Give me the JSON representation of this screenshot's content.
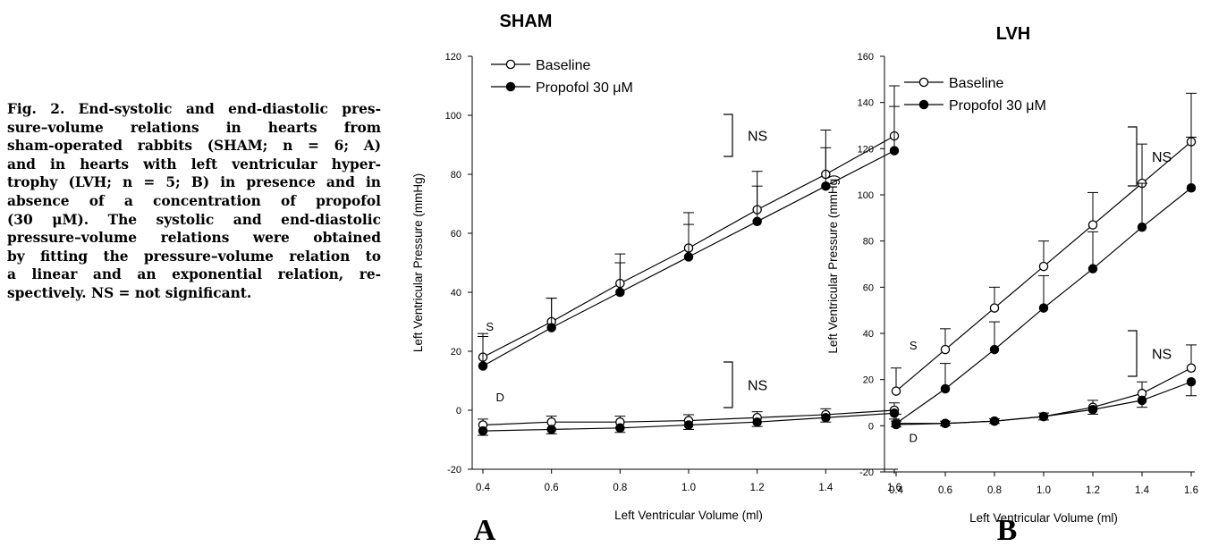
{
  "caption": {
    "lines": [
      "Fig. 2. End-systolic and end-diastolic pres-",
      "sure–volume relations in hearts from",
      "sham-operated rabbits (SHAM; n = 6; A)",
      "and in hearts with left ventricular hyper-",
      "trophy (LVH; n = 5; B) in presence and in",
      "absence of a concentration of propofol",
      "(30 μM). The systolic and end-diastolic",
      "pressure–volume relations were obtained",
      "by fitting the pressure–volume relation to",
      "a linear and an exponential relation, re-",
      "spectively. NS = not significant."
    ]
  },
  "chart_data": [
    {
      "type": "line",
      "panel_letter": "A",
      "title": "SHAM",
      "xlabel": "Left Ventricular Volume (ml)",
      "ylabel": "Left Ventricular Pressure (mmHg)",
      "xlim": [
        0.4,
        1.6
      ],
      "ylim": [
        -20,
        120
      ],
      "x_ticks": [
        "0.4",
        "0.6",
        "0.8",
        "1.0",
        "1.2",
        "1.4",
        "1.6"
      ],
      "y_ticks": [
        "-20",
        "0",
        "20",
        "40",
        "60",
        "80",
        "100",
        "120"
      ],
      "x": [
        0.4,
        0.6,
        0.8,
        1.0,
        1.2,
        1.4,
        1.6
      ],
      "legend_position": "top-left",
      "series": [
        {
          "name": "Baseline",
          "marker": "open-circle",
          "group": "S",
          "values": [
            18,
            30,
            43,
            55,
            68,
            80,
            93
          ],
          "error": [
            8,
            8,
            10,
            12,
            13,
            15,
            17
          ]
        },
        {
          "name": "Propofol 30 μM",
          "marker": "filled-circle",
          "group": "S",
          "values": [
            15,
            28,
            40,
            52,
            64,
            76,
            88
          ],
          "error": [
            10,
            10,
            10,
            11,
            12,
            13,
            15
          ]
        },
        {
          "name": "Baseline",
          "marker": "open-circle",
          "group": "D",
          "values": [
            -5,
            -4,
            -4,
            -3.5,
            -2.5,
            -1.5,
            0
          ],
          "error": [
            2,
            2,
            2,
            2,
            2,
            2,
            2.5
          ]
        },
        {
          "name": "Propofol 30 μM",
          "marker": "filled-circle",
          "group": "D",
          "values": [
            -7,
            -6.5,
            -6,
            -5,
            -4,
            -2.5,
            -1
          ],
          "error": [
            1.5,
            1.5,
            1.5,
            1.5,
            1.5,
            1.5,
            2
          ]
        }
      ],
      "annotations": [
        {
          "text": "S",
          "x": 0.42,
          "y": 27
        },
        {
          "text": "D",
          "x": 0.45,
          "y": 3
        },
        {
          "text": "NS",
          "group": "S"
        },
        {
          "text": "NS",
          "group": "D"
        }
      ]
    },
    {
      "type": "line",
      "panel_letter": "B",
      "title": "LVH",
      "xlabel": "Left Ventricular Volume (ml)",
      "ylabel": "Left Ventricular Pressure (mmHg)",
      "xlim": [
        0.4,
        1.6
      ],
      "ylim": [
        -20,
        160
      ],
      "x_ticks": [
        "0.4",
        "0.6",
        "0.8",
        "1.0",
        "1.2",
        "1.4",
        "1.6"
      ],
      "y_ticks": [
        "-20",
        "0",
        "20",
        "40",
        "60",
        "80",
        "100",
        "120",
        "140",
        "160"
      ],
      "x": [
        0.4,
        0.6,
        0.8,
        1.0,
        1.2,
        1.4,
        1.6
      ],
      "legend_position": "top-left",
      "series": [
        {
          "name": "Baseline",
          "marker": "open-circle",
          "group": "S",
          "values": [
            15,
            33,
            51,
            69,
            87,
            105,
            123
          ],
          "error": [
            10,
            9,
            9,
            11,
            14,
            17,
            21
          ]
        },
        {
          "name": "Propofol 30 μM",
          "marker": "filled-circle",
          "group": "S",
          "values": [
            1,
            16,
            33,
            51,
            68,
            86,
            103
          ],
          "error": [
            4,
            11,
            12,
            14,
            16,
            19,
            22
          ]
        },
        {
          "name": "Baseline",
          "marker": "open-circle",
          "group": "D",
          "values": [
            1,
            1,
            2,
            4,
            8,
            14,
            25
          ],
          "error": [
            1,
            1,
            1,
            1.5,
            3,
            5,
            10
          ]
        },
        {
          "name": "Propofol 30 μM",
          "marker": "filled-circle",
          "group": "D",
          "values": [
            0.5,
            1,
            2,
            4,
            7,
            11,
            19
          ],
          "error": [
            1,
            1,
            1,
            1.5,
            2,
            3,
            6
          ]
        }
      ],
      "annotations": [
        {
          "text": "S",
          "x": 0.47,
          "y": 33
        },
        {
          "text": "D",
          "x": 0.47,
          "y": -7
        },
        {
          "text": "NS",
          "group": "S"
        },
        {
          "text": "NS",
          "group": "D"
        }
      ]
    }
  ]
}
